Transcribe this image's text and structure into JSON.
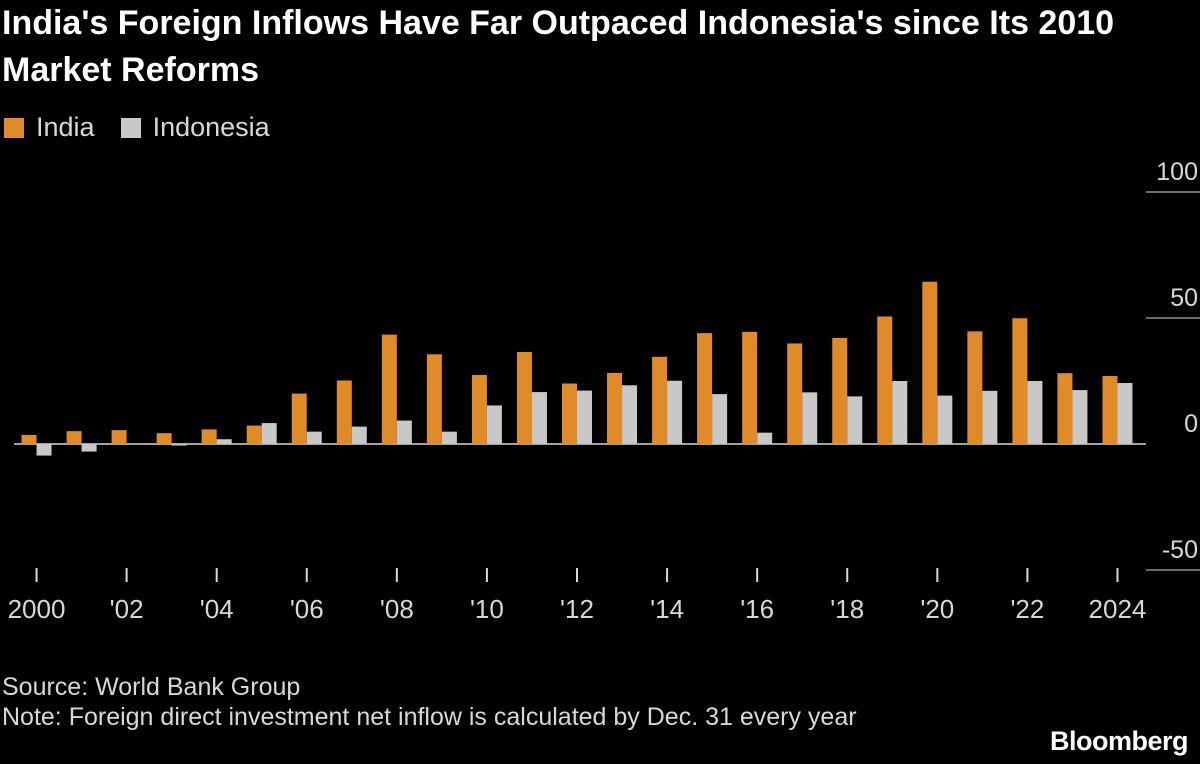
{
  "title": "India's Foreign Inflows Have Far Outpaced Indonesia's since Its 2010 Market Reforms",
  "colors": {
    "india": "#E18A28",
    "indonesia": "#C8C8C8",
    "background": "#000000"
  },
  "legend": [
    {
      "label": "India"
    },
    {
      "label": "Indonesia"
    }
  ],
  "source": "Source: World Bank Group",
  "note": "Note: Foreign direct investment net inflow is calculated by Dec. 31 every year",
  "brand": "Bloomberg",
  "chart_data": {
    "type": "bar",
    "title": "India's Foreign Inflows Have Far Outpaced Indonesia's since Its 2010 Market Reforms",
    "xlabel": "",
    "ylabel": "",
    "ylim": [
      -50,
      100
    ],
    "yticks": [
      -50,
      0,
      50,
      100
    ],
    "ytick_labels": [
      "-50",
      "0",
      "50",
      "100"
    ],
    "categories": [
      "2000",
      "2001",
      "2002",
      "2003",
      "2004",
      "2005",
      "2006",
      "2007",
      "2008",
      "2009",
      "2010",
      "2011",
      "2012",
      "2013",
      "2014",
      "2015",
      "2016",
      "2017",
      "2018",
      "2019",
      "2020",
      "2021",
      "2022",
      "2023",
      "2024"
    ],
    "xtick_labels": [
      "2000",
      "",
      "'02",
      "",
      "'04",
      "",
      "'06",
      "",
      "'08",
      "",
      "'10",
      "",
      "'12",
      "",
      "'14",
      "",
      "'16",
      "",
      "'18",
      "",
      "'20",
      "",
      "'22",
      "",
      "2024"
    ],
    "series": [
      {
        "name": "India",
        "values": [
          3.6,
          5.1,
          5.5,
          4.3,
          5.8,
          7.3,
          20.0,
          25.2,
          43.4,
          35.6,
          27.4,
          36.5,
          24.0,
          28.2,
          34.6,
          44.0,
          44.5,
          39.9,
          42.1,
          50.6,
          64.4,
          44.7,
          49.9,
          28.1,
          27.0
        ]
      },
      {
        "name": "Indonesia",
        "values": [
          -4.6,
          -3.0,
          0.1,
          -0.6,
          1.9,
          8.3,
          4.9,
          6.9,
          9.3,
          4.9,
          15.3,
          20.6,
          21.2,
          23.3,
          25.1,
          19.8,
          4.5,
          20.5,
          18.9,
          25.0,
          19.2,
          21.1,
          25.0,
          21.4,
          24.2
        ]
      }
    ]
  }
}
